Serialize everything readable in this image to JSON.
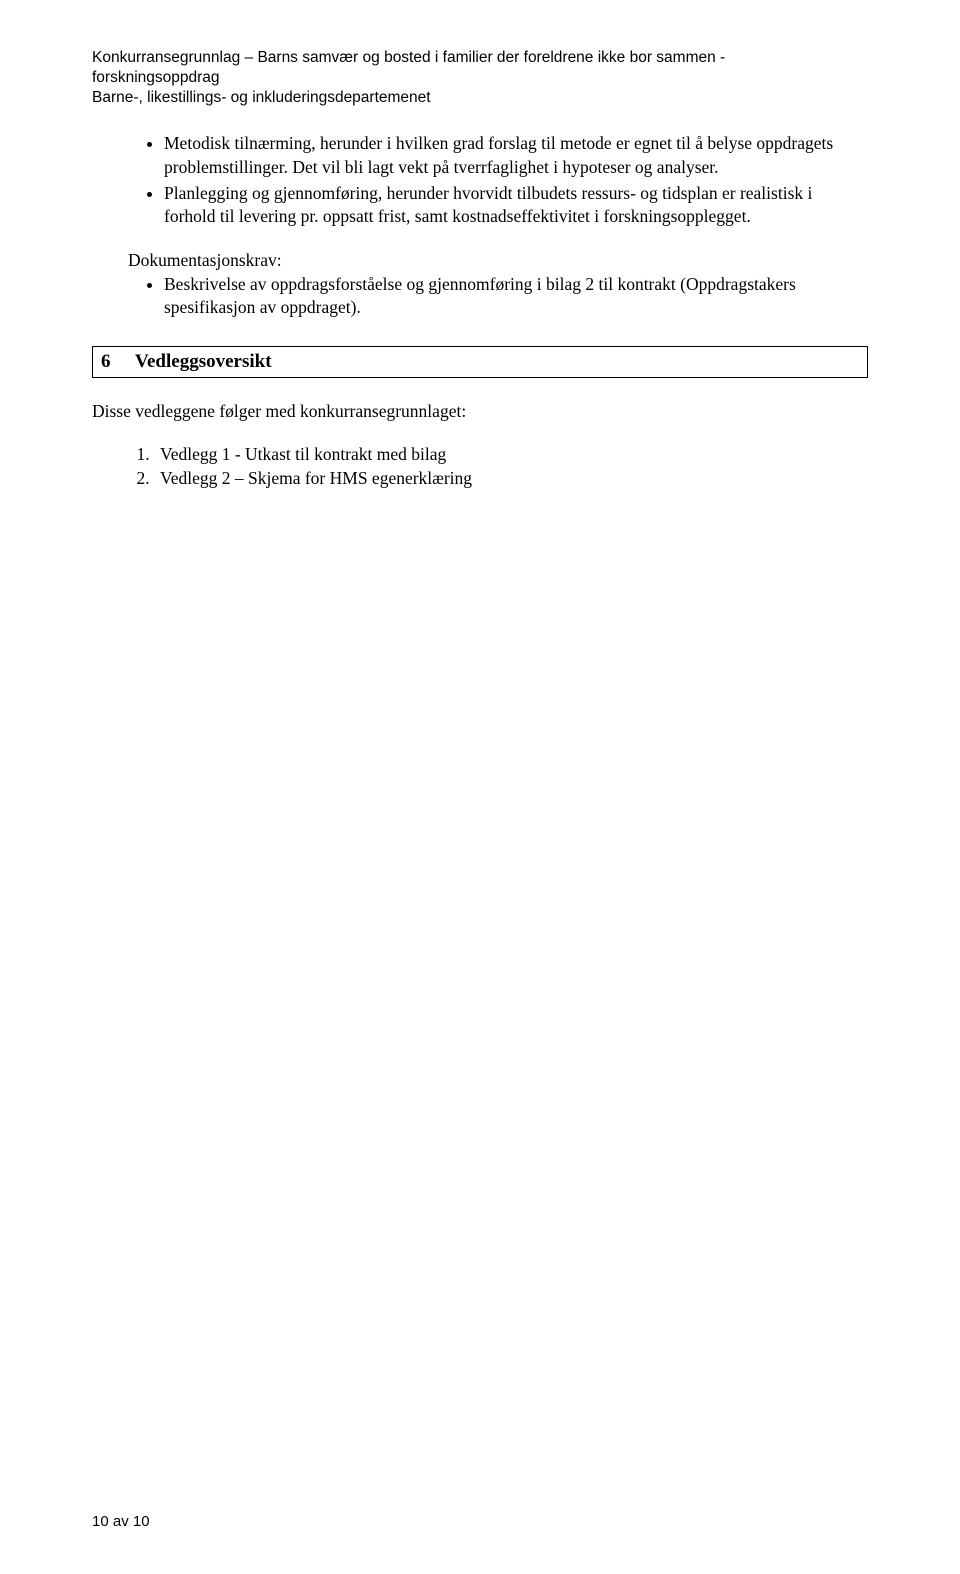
{
  "header": {
    "line1": "Konkurransegrunnlag – Barns samvær og bosted i familier der foreldrene ikke bor sammen -",
    "line2": "forskningsoppdrag",
    "line3": "Barne-, likestillings- og inkluderingsdepartemenet"
  },
  "bullets_main": [
    "Metodisk tilnærming, herunder i hvilken grad forslag til metode er egnet til å belyse oppdragets problemstillinger. Det vil bli lagt vekt på tverrfaglighet i hypoteser og analyser.",
    "Planlegging og gjennomføring, herunder hvorvidt tilbudets ressurs- og tidsplan er realistisk i forhold til levering pr. oppsatt frist, samt kostnadseffektivitet i forskningsopplegget."
  ],
  "dokkrav_label": "Dokumentasjonskrav:",
  "dokkrav_bullet": "Beskrivelse av oppdragsforståelse og gjennomføring i bilag 2 til kontrakt (Oppdragstakers spesifikasjon av oppdraget).",
  "section6": {
    "num": "6",
    "title": "Vedleggsoversikt"
  },
  "vedlegg_intro": "Disse vedleggene følger med konkurransegrunnlaget:",
  "vedlegg_items": [
    "Vedlegg 1 - Utkast til kontrakt med bilag",
    "Vedlegg 2 – Skjema for HMS egenerklæring"
  ],
  "footer": "10 av 10"
}
